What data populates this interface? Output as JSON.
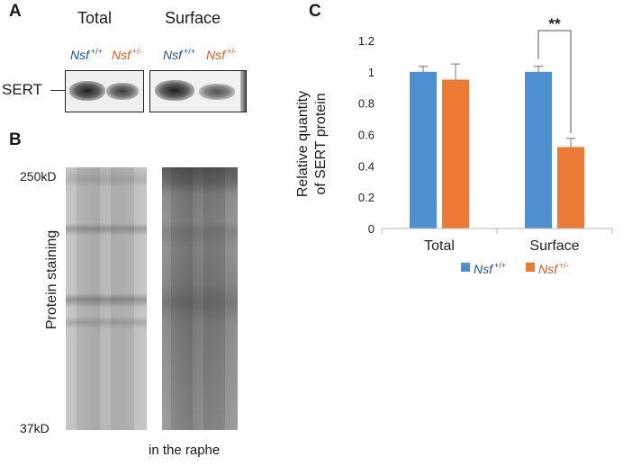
{
  "panelA": {
    "letter": "A",
    "total_label": "Total",
    "surface_label": "Surface",
    "genotype_base": "Nsf",
    "wt_sup": "+/+",
    "het_sup": "+/-",
    "protein_label": "SERT"
  },
  "panelB": {
    "letter": "B",
    "mw_top": "250kD",
    "mw_bottom": "37kD",
    "ylabel": "Protein staining",
    "caption": "in the raphe"
  },
  "panelC": {
    "letter": "C",
    "significance": "**",
    "legend_wt_base": "Nsf",
    "legend_wt_sup": "+/+",
    "legend_het_base": "Nsf",
    "legend_het_sup": "+/-"
  },
  "colors": {
    "wt": "#4e8fcf",
    "het": "#ec7a35",
    "wt_text": "#1f4e9c",
    "het_text": "#e2571e"
  },
  "chart_data": {
    "type": "bar",
    "categories": [
      "Total",
      "Surface"
    ],
    "series": [
      {
        "name": "Nsf +/+",
        "values": [
          1.0,
          1.0
        ],
        "errors": [
          0.035,
          0.035
        ]
      },
      {
        "name": "Nsf +/-",
        "values": [
          0.95,
          0.52
        ],
        "errors": [
          0.1,
          0.055
        ]
      }
    ],
    "title": "",
    "xlabel": "",
    "ylabel": "Relative quantity of SERT protein",
    "ylabel_lines": [
      "Relative quantity",
      "of SERT protein"
    ],
    "ylim": [
      0,
      1.2
    ],
    "yticks": [
      0,
      0.2,
      0.4,
      0.6,
      0.8,
      1,
      1.2
    ],
    "grid": false,
    "legend": "bottom",
    "annotation": "**"
  }
}
